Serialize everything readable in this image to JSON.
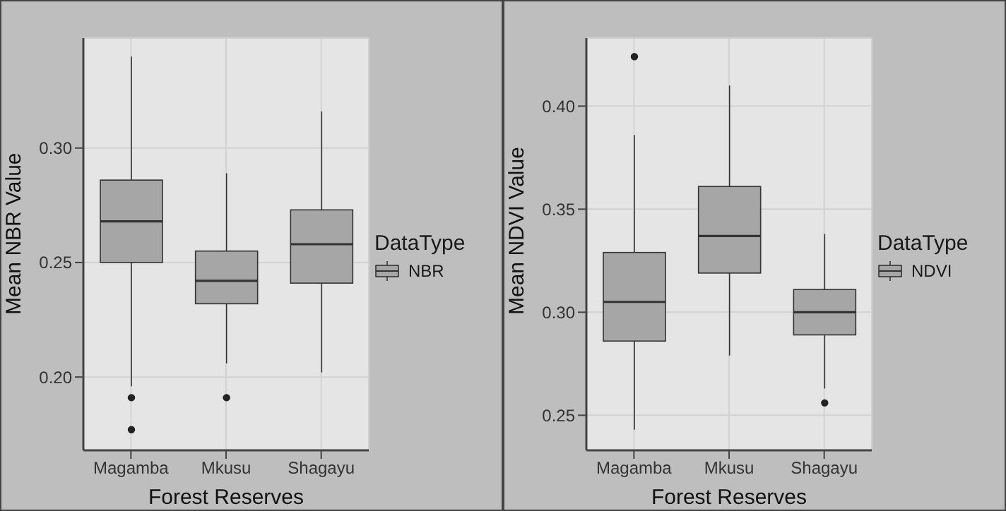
{
  "chart_data": [
    {
      "type": "box",
      "xlabel": "Forest Reserves",
      "ylabel": "Mean NBR Value",
      "legend_title": "DataType",
      "categories": [
        "Magamba",
        "Mkusu",
        "Shagayu"
      ],
      "series": [
        {
          "name": "NBR",
          "color": "#a6a6a6",
          "boxes": [
            {
              "low": 0.196,
              "q1": 0.25,
              "median": 0.268,
              "q3": 0.286,
              "high": 0.34,
              "outliers": [
                0.191,
                0.177
              ]
            },
            {
              "low": 0.206,
              "q1": 0.232,
              "median": 0.242,
              "q3": 0.255,
              "high": 0.289,
              "outliers": [
                0.191
              ]
            },
            {
              "low": 0.202,
              "q1": 0.241,
              "median": 0.258,
              "q3": 0.273,
              "high": 0.316
            }
          ]
        }
      ],
      "ylim": [
        0.168,
        0.348
      ],
      "yticks": [
        {
          "value": 0.2,
          "label": "0.20"
        },
        {
          "value": 0.25,
          "label": "0.25"
        },
        {
          "value": 0.3,
          "label": "0.30"
        }
      ],
      "grid": true,
      "legend": "right"
    },
    {
      "type": "box",
      "xlabel": "Forest Reserves",
      "ylabel": "Mean NDVI Value",
      "legend_title": "DataType",
      "categories": [
        "Magamba",
        "Mkusu",
        "Shagayu"
      ],
      "series": [
        {
          "name": "NDVI",
          "color": "#a6a6a6",
          "boxes": [
            {
              "low": 0.243,
              "q1": 0.286,
              "median": 0.305,
              "q3": 0.329,
              "high": 0.386,
              "outliers": [
                0.424
              ]
            },
            {
              "low": 0.279,
              "q1": 0.319,
              "median": 0.337,
              "q3": 0.361,
              "high": 0.41
            },
            {
              "low": 0.263,
              "q1": 0.289,
              "median": 0.3,
              "q3": 0.311,
              "high": 0.338,
              "outliers": [
                0.256
              ]
            }
          ]
        }
      ],
      "ylim": [
        0.233,
        0.433
      ],
      "yticks": [
        {
          "value": 0.25,
          "label": "0.25"
        },
        {
          "value": 0.3,
          "label": "0.30"
        },
        {
          "value": 0.35,
          "label": "0.35"
        },
        {
          "value": 0.4,
          "label": "0.40"
        }
      ],
      "grid": true,
      "legend": "right"
    }
  ]
}
